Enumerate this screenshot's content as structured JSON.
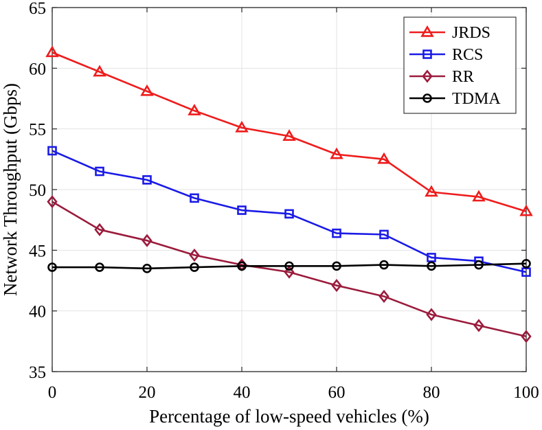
{
  "chart_data": {
    "type": "line",
    "title": "",
    "xlabel": "Percentage of low-speed vehicles (%)",
    "ylabel": "Network Throughput (Gbps)",
    "xlim": [
      0,
      100
    ],
    "ylim": [
      35,
      65
    ],
    "xticks": [
      0,
      20,
      40,
      60,
      80,
      100
    ],
    "yticks": [
      35,
      40,
      45,
      50,
      55,
      60,
      65
    ],
    "grid": true,
    "legend_position": "top-right",
    "x": [
      0,
      10,
      20,
      30,
      40,
      50,
      60,
      70,
      80,
      90,
      100
    ],
    "series": [
      {
        "name": "JRDS",
        "color": "#ee1c1c",
        "marker": "triangle",
        "values": [
          61.3,
          59.7,
          58.1,
          56.5,
          55.1,
          54.4,
          52.9,
          52.5,
          49.8,
          49.4,
          48.2
        ]
      },
      {
        "name": "RCS",
        "color": "#1a1ae6",
        "marker": "square",
        "values": [
          53.2,
          51.5,
          50.8,
          49.3,
          48.3,
          48.0,
          46.4,
          46.3,
          44.4,
          44.1,
          43.2
        ]
      },
      {
        "name": "RR",
        "color": "#9b1b3c",
        "marker": "diamond",
        "values": [
          49.0,
          46.7,
          45.8,
          44.6,
          43.8,
          43.2,
          42.1,
          41.2,
          39.7,
          38.8,
          37.9
        ]
      },
      {
        "name": "TDMA",
        "color": "#000000",
        "marker": "circle",
        "values": [
          43.6,
          43.6,
          43.5,
          43.6,
          43.7,
          43.7,
          43.7,
          43.8,
          43.7,
          43.8,
          43.9
        ]
      }
    ]
  }
}
